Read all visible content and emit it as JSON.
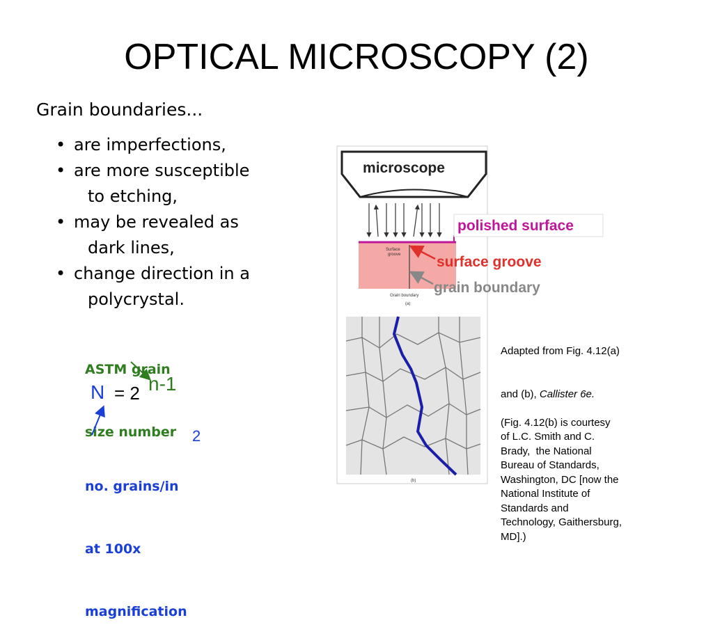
{
  "slide": {
    "title": "OPTICAL MICROSCOPY (2)",
    "heading": "Grain boundaries...",
    "bullets": [
      {
        "lines": [
          "are imperfections,"
        ]
      },
      {
        "lines": [
          "are more susceptible",
          "to etching,"
        ]
      },
      {
        "lines": [
          "may be revealed as",
          "dark lines,"
        ]
      },
      {
        "lines": [
          "change direction in a",
          "polycrystal."
        ]
      }
    ],
    "formula": {
      "astm_label": [
        "ASTM grain",
        "size number"
      ],
      "symbol": "N",
      "equals": "= 2",
      "exponent": "n-1",
      "grains_label": [
        "no. grains/in",
        "at 100x",
        "magnification"
      ],
      "grains_exponent": "2"
    },
    "figure": {
      "microscope": "microscope",
      "polished_surface": "polished surface",
      "surface_groove": "surface groove",
      "grain_boundary": "grain boundary",
      "small_surface_groove": [
        "Surface",
        "groove"
      ],
      "small_grain_boundary": "Grain boundary",
      "label_a": "(a)",
      "label_b": "(b)"
    },
    "caption": {
      "first": "Adapted from Fig. 4.12(a)",
      "second_plain": "and (b), ",
      "second_italic": "Callister 6e.",
      "lines": [
        "(Fig. 4.12(b) is courtesy",
        "of L.C. Smith and C.",
        "Brady,  the National",
        "Bureau of Standards,",
        "Washington, DC [now the",
        "National Institute of",
        "Standards and",
        "Technology, Gaithersburg,",
        "MD].)"
      ]
    }
  }
}
